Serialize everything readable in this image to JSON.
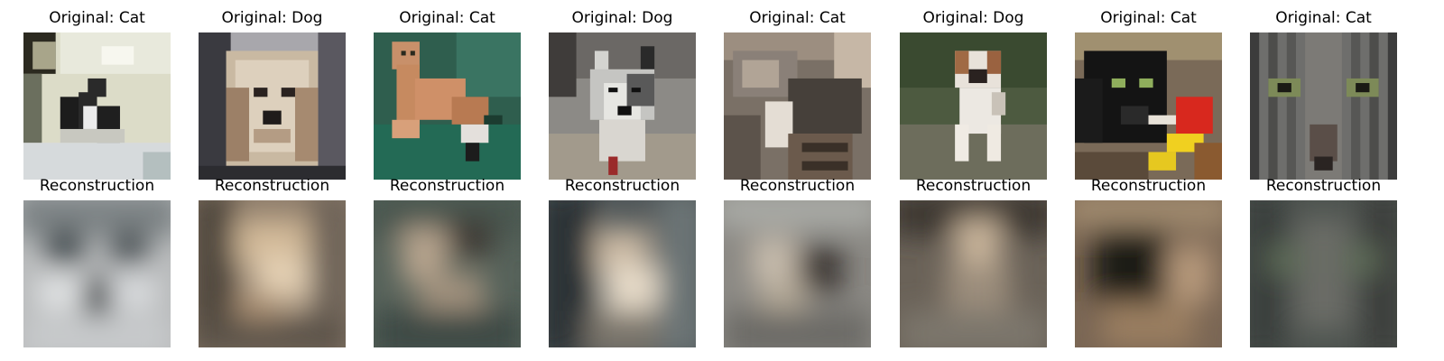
{
  "figure": {
    "original_titles": [
      "Original: Cat",
      "Original: Dog",
      "Original: Cat",
      "Original: Dog",
      "Original: Cat",
      "Original: Dog",
      "Original: Cat",
      "Original: Cat"
    ],
    "reconstruction_titles": [
      "Reconstruction",
      "Reconstruction",
      "Reconstruction",
      "Reconstruction",
      "Reconstruction",
      "Reconstruction",
      "Reconstruction",
      "Reconstruction"
    ],
    "original_images": [
      "cat-near-window",
      "dog-long-haired",
      "cat-on-green-couch",
      "dog-gray-white",
      "cat-curled-up",
      "dog-bulldog-puppy",
      "cat-black-with-toy",
      "cat-face-close-up"
    ],
    "reconstruction_images": [
      "blurry-reconstruction",
      "blurry-reconstruction",
      "blurry-reconstruction",
      "blurry-reconstruction",
      "blurry-reconstruction",
      "blurry-reconstruction",
      "blurry-reconstruction",
      "blurry-reconstruction"
    ],
    "colors": {
      "background": "#ffffff",
      "text": "#000000"
    }
  }
}
